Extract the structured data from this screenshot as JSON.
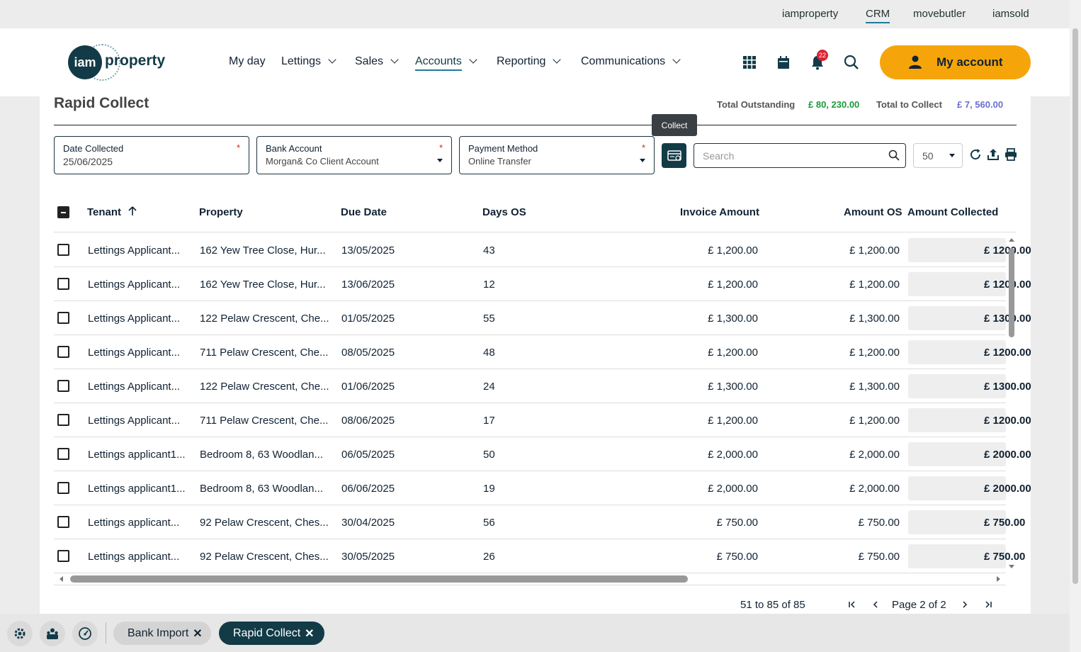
{
  "topbar": {
    "links": [
      "iamproperty",
      "CRM",
      "movebutler",
      "iamsold"
    ],
    "active": "CRM"
  },
  "header": {
    "logo_text": "iam",
    "logo_word": "property",
    "nav": [
      "My day",
      "Lettings",
      "Sales",
      "Accounts",
      "Reporting",
      "Communications"
    ],
    "active_nav": "Accounts",
    "notification_count": "22",
    "account_label": "My account"
  },
  "page": {
    "title": "Rapid Collect",
    "total_outstanding_label": "Total Outstanding",
    "total_outstanding_value": "£ 80, 230.00",
    "total_collect_label": "Total to Collect",
    "total_collect_value": "£ 7, 560.00",
    "tooltip": "Collect"
  },
  "filters": {
    "date": {
      "label": "Date Collected",
      "value": "25/06/2025",
      "required": "*"
    },
    "bank": {
      "label": "Bank Account",
      "value": "Morgan& Co Client Account",
      "required": "*"
    },
    "method": {
      "label": "Payment Method",
      "value": "Online Transfer",
      "required": "*"
    },
    "search_placeholder": "Search",
    "page_size": "50"
  },
  "table": {
    "headers": {
      "tenant": "Tenant",
      "property": "Property",
      "due": "Due Date",
      "days": "Days OS",
      "invoice": "Invoice Amount",
      "os": "Amount OS",
      "collected": "Amount Collected"
    },
    "rows": [
      {
        "tenant": "Lettings Applicant...",
        "property": "162 Yew Tree Close, Hur...",
        "due": "13/05/2025",
        "days": "43",
        "invoice": "£ 1,200.00",
        "os": "£ 1,200.00",
        "collected": "£ 1200.00"
      },
      {
        "tenant": "Lettings Applicant...",
        "property": "162 Yew Tree Close, Hur...",
        "due": "13/06/2025",
        "days": "12",
        "invoice": "£ 1,200.00",
        "os": "£ 1,200.00",
        "collected": "£ 1200.00"
      },
      {
        "tenant": "Lettings Applicant...",
        "property": "122 Pelaw Crescent, Che...",
        "due": "01/05/2025",
        "days": "55",
        "invoice": "£ 1,300.00",
        "os": "£ 1,300.00",
        "collected": "£ 1300.00"
      },
      {
        "tenant": "Lettings Applicant...",
        "property": "711 Pelaw Crescent, Che...",
        "due": "08/05/2025",
        "days": "48",
        "invoice": "£ 1,200.00",
        "os": "£ 1,200.00",
        "collected": "£ 1200.00"
      },
      {
        "tenant": "Lettings Applicant...",
        "property": "122 Pelaw Crescent, Che...",
        "due": "01/06/2025",
        "days": "24",
        "invoice": "£ 1,300.00",
        "os": "£ 1,300.00",
        "collected": "£ 1300.00"
      },
      {
        "tenant": "Lettings Applicant...",
        "property": "711 Pelaw Crescent, Che...",
        "due": "08/06/2025",
        "days": "17",
        "invoice": "£ 1,200.00",
        "os": "£ 1,200.00",
        "collected": "£ 1200.00"
      },
      {
        "tenant": "Lettings applicant1...",
        "property": "Bedroom 8, 63 Woodlan...",
        "due": "06/05/2025",
        "days": "50",
        "invoice": "£ 2,000.00",
        "os": "£ 2,000.00",
        "collected": "£ 2000.00"
      },
      {
        "tenant": "Lettings applicant1...",
        "property": "Bedroom 8, 63 Woodlan...",
        "due": "06/06/2025",
        "days": "19",
        "invoice": "£ 2,000.00",
        "os": "£ 2,000.00",
        "collected": "£ 2000.00"
      },
      {
        "tenant": "Lettings applicant...",
        "property": "92 Pelaw Crescent, Ches...",
        "due": "30/04/2025",
        "days": "56",
        "invoice": "£ 750.00",
        "os": "£ 750.00",
        "collected": "£ 750.00"
      },
      {
        "tenant": "Lettings applicant...",
        "property": "92 Pelaw Crescent, Ches...",
        "due": "30/05/2025",
        "days": "26",
        "invoice": "£ 750.00",
        "os": "£ 750.00",
        "collected": "£ 750.00"
      }
    ]
  },
  "pager": {
    "range": "51 to 85 of 85",
    "page": "Page 2 of 2"
  },
  "bottom_tabs": [
    {
      "label": "Bank Import",
      "close": "✕"
    },
    {
      "label": "Rapid Collect",
      "close": "✕"
    }
  ]
}
